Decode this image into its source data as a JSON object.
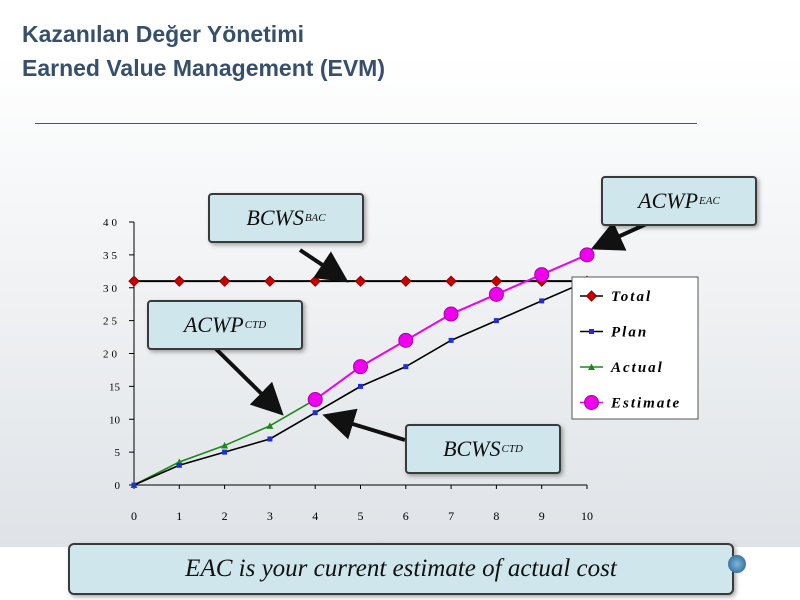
{
  "header": {
    "title_tr": "Kazanılan Değer Yönetimi",
    "title_en": "Earned Value Management (EVM)"
  },
  "chart_data": {
    "type": "line",
    "x": [
      0,
      1,
      2,
      3,
      4,
      5,
      6,
      7,
      8,
      9,
      10
    ],
    "xlim": [
      0,
      10
    ],
    "ylim": [
      0,
      40
    ],
    "y_ticks": [
      "0",
      "5",
      "10",
      "15",
      "20",
      "25",
      "30",
      "35",
      "40"
    ],
    "x_ticks": [
      "0",
      "1",
      "2",
      "3",
      "4",
      "5",
      "6",
      "7",
      "8",
      "9",
      "10"
    ],
    "legend_position": "right",
    "series": [
      {
        "name": "Total",
        "color": "#cc0000",
        "marker": "diamond",
        "x": [
          0,
          1,
          2,
          3,
          4,
          5,
          6,
          7,
          8,
          9,
          10
        ],
        "y": [
          31,
          31,
          31,
          31,
          31,
          31,
          31,
          31,
          31,
          31,
          31
        ]
      },
      {
        "name": "Plan",
        "color": "#1f2fcc",
        "marker": "square",
        "x": [
          0,
          1,
          2,
          3,
          4,
          5,
          6,
          7,
          8,
          9,
          10
        ],
        "y": [
          0,
          3,
          5,
          7,
          11,
          15,
          18,
          22,
          25,
          28,
          31
        ]
      },
      {
        "name": "Actual",
        "color": "#1a8a1a",
        "marker": "triangle",
        "x": [
          0,
          1,
          2,
          3,
          4
        ],
        "y": [
          0,
          3.5,
          6,
          9,
          13
        ]
      },
      {
        "name": "Estimate",
        "color": "#ee00ee",
        "marker": "circle",
        "x": [
          4,
          5,
          6,
          7,
          8,
          9,
          10
        ],
        "y": [
          13,
          18,
          22,
          26,
          29,
          32,
          35
        ]
      }
    ]
  },
  "annotations": {
    "bcws_bac": {
      "main": "BCWS",
      "sub": "BAC"
    },
    "acwp_eac": {
      "main": "ACWP",
      "sub": "EAC"
    },
    "acwp_ctd": {
      "main": "ACWP",
      "sub": "CTD"
    },
    "bcws_ctd": {
      "main": "BCWS",
      "sub": "CTD"
    }
  },
  "footer": {
    "text": "EAC is your current estimate of actual cost"
  }
}
